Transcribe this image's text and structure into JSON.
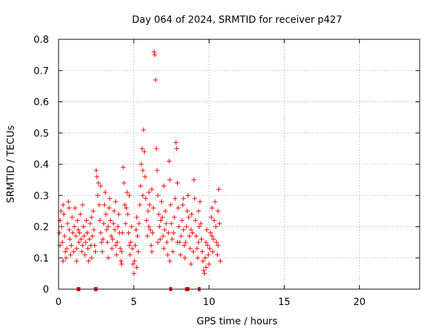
{
  "chart_data": {
    "type": "scatter",
    "title": "Day 064 of 2024, SRMTID for receiver p427",
    "xlabel": "GPS time / hours",
    "ylabel": "SRMTID / TECUs",
    "xlim": [
      0,
      24
    ],
    "ylim": [
      0,
      0.8
    ],
    "x_ticks": [
      0,
      5,
      10,
      15,
      20
    ],
    "y_ticks": [
      0,
      0.1,
      0.2,
      0.3,
      0.4,
      0.5,
      0.6,
      0.7,
      0.8
    ],
    "x_tick_labels": [
      "0",
      "5",
      "10",
      "15",
      "20"
    ],
    "y_tick_labels": [
      "0",
      "0.1",
      "0.2",
      "0.3",
      "0.4",
      "0.5",
      "0.6",
      "0.7",
      "0.8"
    ],
    "grid": true,
    "marker": "+",
    "marker_color": "#ff0000",
    "series": [
      {
        "name": "SRMTID",
        "points": [
          [
            0.05,
            0.18
          ],
          [
            0.1,
            0.22
          ],
          [
            0.15,
            0.25
          ],
          [
            0.2,
            0.2
          ],
          [
            0.25,
            0.15
          ],
          [
            0.3,
            0.27
          ],
          [
            0.35,
            0.24
          ],
          [
            0.4,
            0.17
          ],
          [
            0.45,
            0.12
          ],
          [
            0.5,
            0.1
          ],
          [
            0.55,
            0.13
          ],
          [
            0.6,
            0.21
          ],
          [
            0.65,
            0.28
          ],
          [
            0.7,
            0.19
          ],
          [
            0.75,
            0.16
          ],
          [
            0.8,
            0.11
          ],
          [
            0.85,
            0.14
          ],
          [
            0.9,
            0.23
          ],
          [
            0.95,
            0.18
          ],
          [
            1.0,
            0.12
          ],
          [
            1.05,
            0.2
          ],
          [
            1.1,
            0.26
          ],
          [
            1.15,
            0.17
          ],
          [
            1.2,
            0.13
          ],
          [
            1.25,
            0.22
          ],
          [
            1.3,
            0.19
          ],
          [
            1.35,
            0.15
          ],
          [
            1.4,
            0.18
          ],
          [
            1.45,
            0.24
          ],
          [
            1.5,
            0.16
          ],
          [
            1.55,
            0.12
          ],
          [
            1.6,
            0.14
          ],
          [
            1.65,
            0.2
          ],
          [
            1.7,
            0.17
          ],
          [
            1.75,
            0.11
          ],
          [
            1.8,
            0.15
          ],
          [
            1.85,
            0.22
          ],
          [
            1.9,
            0.18
          ],
          [
            1.95,
            0.13
          ],
          [
            2.0,
            0.09
          ],
          [
            2.05,
            0.16
          ],
          [
            2.1,
            0.21
          ],
          [
            2.15,
            0.14
          ],
          [
            2.2,
            0.1
          ],
          [
            2.25,
            0.17
          ],
          [
            2.3,
            0.25
          ],
          [
            2.35,
            0.19
          ],
          [
            2.4,
            0.14
          ],
          [
            2.45,
            0.12
          ],
          [
            2.5,
            0.38
          ],
          [
            2.55,
            0.36
          ],
          [
            2.6,
            0.3
          ],
          [
            2.65,
            0.34
          ],
          [
            2.7,
            0.27
          ],
          [
            2.75,
            0.22
          ],
          [
            2.8,
            0.18
          ],
          [
            2.85,
            0.15
          ],
          [
            2.9,
            0.12
          ],
          [
            2.95,
            0.16
          ],
          [
            3.0,
            0.21
          ],
          [
            3.05,
            0.27
          ],
          [
            3.1,
            0.31
          ],
          [
            3.15,
            0.24
          ],
          [
            3.2,
            0.19
          ],
          [
            3.25,
            0.15
          ],
          [
            3.3,
            0.2
          ],
          [
            3.35,
            0.26
          ],
          [
            3.4,
            0.29
          ],
          [
            3.45,
            0.22
          ],
          [
            3.5,
            0.17
          ],
          [
            3.55,
            0.13
          ],
          [
            3.6,
            0.16
          ],
          [
            3.65,
            0.21
          ],
          [
            3.7,
            0.25
          ],
          [
            3.75,
            0.19
          ],
          [
            3.8,
            0.14
          ],
          [
            3.85,
            0.11
          ],
          [
            3.9,
            0.15
          ],
          [
            3.95,
            0.2
          ],
          [
            4.0,
            0.24
          ],
          [
            4.05,
            0.18
          ],
          [
            4.1,
            0.13
          ],
          [
            4.15,
            0.09
          ],
          [
            4.2,
            0.12
          ],
          [
            4.25,
            0.18
          ],
          [
            4.3,
            0.39
          ],
          [
            4.35,
            0.34
          ],
          [
            4.4,
            0.27
          ],
          [
            4.45,
            0.21
          ],
          [
            4.5,
            0.26
          ],
          [
            4.55,
            0.31
          ],
          [
            4.6,
            0.24
          ],
          [
            4.65,
            0.18
          ],
          [
            4.7,
            0.14
          ],
          [
            4.75,
            0.11
          ],
          [
            4.8,
            0.15
          ],
          [
            4.85,
            0.2
          ],
          [
            4.9,
            0.13
          ],
          [
            4.95,
            0.08
          ],
          [
            5.0,
            0.05
          ],
          [
            5.05,
            0.09
          ],
          [
            5.1,
            0.14
          ],
          [
            5.15,
            0.19
          ],
          [
            5.2,
            0.23
          ],
          [
            5.25,
            0.17
          ],
          [
            5.3,
            0.12
          ],
          [
            5.35,
            0.21
          ],
          [
            5.4,
            0.27
          ],
          [
            5.45,
            0.33
          ],
          [
            5.5,
            0.4
          ],
          [
            5.55,
            0.45
          ],
          [
            5.6,
            0.38
          ],
          [
            5.65,
            0.51
          ],
          [
            5.7,
            0.44
          ],
          [
            5.75,
            0.36
          ],
          [
            5.8,
            0.29
          ],
          [
            5.85,
            0.22
          ],
          [
            5.9,
            0.17
          ],
          [
            5.95,
            0.25
          ],
          [
            6.0,
            0.31
          ],
          [
            6.05,
            0.27
          ],
          [
            6.1,
            0.19
          ],
          [
            6.15,
            0.14
          ],
          [
            6.2,
            0.12
          ],
          [
            6.25,
            0.18
          ],
          [
            6.3,
            0.26
          ],
          [
            6.35,
            0.76
          ],
          [
            6.4,
            0.75
          ],
          [
            6.45,
            0.67
          ],
          [
            6.5,
            0.45
          ],
          [
            6.55,
            0.38
          ],
          [
            6.6,
            0.3
          ],
          [
            6.65,
            0.24
          ],
          [
            6.7,
            0.2
          ],
          [
            6.75,
            0.16
          ],
          [
            6.8,
            0.22
          ],
          [
            6.85,
            0.28
          ],
          [
            6.9,
            0.23
          ],
          [
            6.95,
            0.17
          ],
          [
            7.0,
            0.13
          ],
          [
            7.05,
            0.19
          ],
          [
            7.1,
            0.25
          ],
          [
            7.15,
            0.21
          ],
          [
            7.2,
            0.15
          ],
          [
            7.25,
            0.11
          ],
          [
            7.3,
            0.18
          ],
          [
            7.35,
            0.41
          ],
          [
            7.4,
            0.35
          ],
          [
            7.45,
            0.27
          ],
          [
            7.5,
            0.21
          ],
          [
            7.55,
            0.16
          ],
          [
            7.6,
            0.12
          ],
          [
            7.65,
            0.18
          ],
          [
            7.7,
            0.23
          ],
          [
            7.75,
            0.29
          ],
          [
            7.8,
            0.47
          ],
          [
            7.85,
            0.45
          ],
          [
            7.9,
            0.34
          ],
          [
            7.95,
            0.26
          ],
          [
            8.0,
            0.2
          ],
          [
            8.05,
            0.15
          ],
          [
            8.1,
            0.11
          ],
          [
            8.15,
            0.17
          ],
          [
            8.2,
            0.22
          ],
          [
            8.25,
            0.27
          ],
          [
            8.3,
            0.19
          ],
          [
            8.35,
            0.14
          ],
          [
            8.4,
            0.1
          ],
          [
            8.45,
            0.15
          ],
          [
            8.5,
            0.2
          ],
          [
            8.55,
            0.25
          ],
          [
            8.6,
            0.3
          ],
          [
            8.65,
            0.23
          ],
          [
            8.7,
            0.17
          ],
          [
            8.75,
            0.13
          ],
          [
            8.8,
            0.19
          ],
          [
            8.85,
            0.24
          ],
          [
            8.9,
            0.18
          ],
          [
            8.95,
            0.12
          ],
          [
            9.0,
            0.35
          ],
          [
            9.05,
            0.29
          ],
          [
            9.1,
            0.22
          ],
          [
            9.15,
            0.17
          ],
          [
            9.2,
            0.13
          ],
          [
            9.25,
            0.1
          ],
          [
            9.3,
            0.15
          ],
          [
            9.35,
            0.2
          ],
          [
            9.4,
            0.28
          ],
          [
            9.45,
            0.21
          ],
          [
            9.5,
            0.16
          ],
          [
            9.55,
            0.12
          ],
          [
            9.6,
            0.09
          ],
          [
            9.65,
            0.06
          ],
          [
            9.7,
            0.05
          ],
          [
            9.75,
            0.1
          ],
          [
            9.8,
            0.15
          ],
          [
            9.85,
            0.19
          ],
          [
            9.9,
            0.14
          ],
          [
            9.95,
            0.11
          ],
          [
            10.0,
            0.08
          ],
          [
            10.05,
            0.13
          ],
          [
            10.1,
            0.18
          ],
          [
            10.15,
            0.23
          ],
          [
            10.2,
            0.17
          ],
          [
            10.25,
            0.12
          ],
          [
            10.3,
            0.16
          ],
          [
            10.35,
            0.22
          ],
          [
            10.4,
            0.28
          ],
          [
            10.45,
            0.2
          ],
          [
            10.5,
            0.15
          ],
          [
            10.55,
            0.11
          ],
          [
            10.6,
            0.25
          ],
          [
            10.65,
            0.32
          ],
          [
            10.7,
            0.21
          ],
          [
            10.75,
            0.09
          ],
          [
            0.1,
            0.14
          ],
          [
            0.3,
            0.09
          ],
          [
            0.7,
            0.26
          ],
          [
            1.2,
            0.09
          ],
          [
            1.6,
            0.27
          ],
          [
            2.2,
            0.23
          ],
          [
            2.8,
            0.33
          ],
          [
            3.3,
            0.1
          ],
          [
            3.8,
            0.28
          ],
          [
            4.2,
            0.08
          ],
          [
            4.7,
            0.3
          ],
          [
            5.2,
            0.07
          ],
          [
            5.6,
            0.3
          ],
          [
            6.0,
            0.2
          ],
          [
            6.2,
            0.32
          ],
          [
            6.6,
            0.15
          ],
          [
            7.0,
            0.33
          ],
          [
            7.4,
            0.09
          ],
          [
            7.9,
            0.15
          ],
          [
            8.3,
            0.29
          ],
          [
            8.8,
            0.08
          ],
          [
            9.3,
            0.25
          ],
          [
            9.8,
            0.07
          ],
          [
            10.2,
            0.26
          ],
          [
            10.6,
            0.14
          ]
        ]
      }
    ],
    "axis_markers": [
      1.3,
      1.35,
      2.45,
      2.5,
      7.45,
      8.5,
      8.55,
      8.6,
      9.35
    ]
  }
}
